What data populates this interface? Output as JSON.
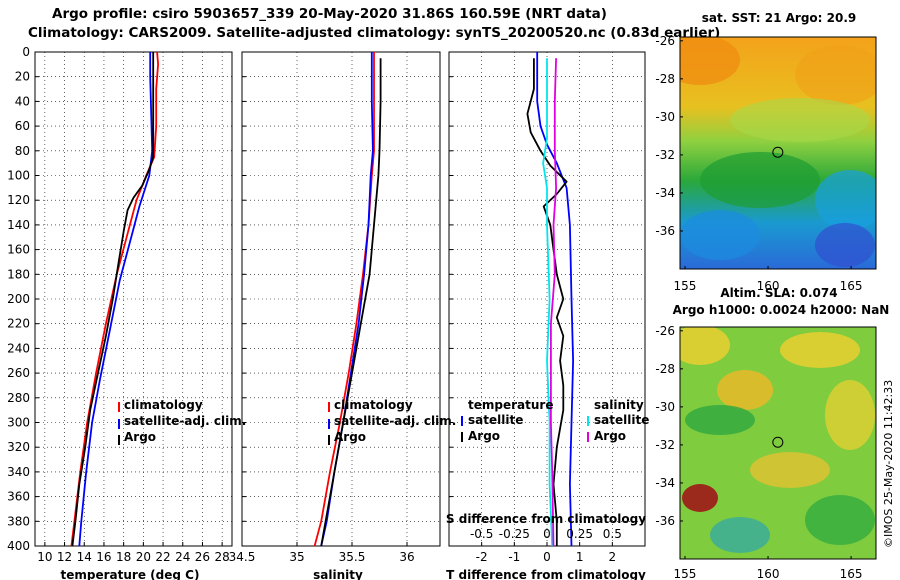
{
  "header": {
    "line1": "Argo profile: csiro 5903657_339 20-May-2020 31.86S 160.59E (NRT data)",
    "line2": "Climatology: CARS2009. Satellite-adjusted climatology: synTS_20200520.nc (0.83d earlier)"
  },
  "colors": {
    "climatology": "#ff0000",
    "satellite": "#0000ff",
    "argo": "#000000",
    "satellite_salinity": "#00e5ee",
    "argo_salinity": "#e000e0"
  },
  "chart_data": [
    {
      "type": "line",
      "name": "temperature",
      "xlabel": "temperature (deg C)",
      "xlim": [
        9,
        29
      ],
      "xticks": [
        10,
        12,
        14,
        16,
        18,
        20,
        22,
        24,
        26,
        28
      ],
      "ylim": [
        400,
        0
      ],
      "yticks": [
        0,
        20,
        40,
        60,
        80,
        100,
        120,
        140,
        160,
        180,
        200,
        220,
        240,
        260,
        280,
        300,
        320,
        340,
        360,
        380,
        400
      ],
      "grid": true,
      "legend": [
        "climatology",
        "satellite-adj. clim.",
        "Argo"
      ],
      "series": [
        {
          "name": "climatology",
          "color": "#ff0000",
          "points": [
            [
              21.4,
              0
            ],
            [
              21.5,
              10
            ],
            [
              21.3,
              30
            ],
            [
              21.3,
              60
            ],
            [
              21.1,
              85
            ],
            [
              20.3,
              100
            ],
            [
              19.3,
              120
            ],
            [
              18.3,
              150
            ],
            [
              17.3,
              180
            ],
            [
              16.2,
              220
            ],
            [
              15.2,
              260
            ],
            [
              14.3,
              300
            ],
            [
              13.6,
              340
            ],
            [
              13.0,
              380
            ],
            [
              12.7,
              400
            ]
          ]
        },
        {
          "name": "satellite-adj. clim.",
          "color": "#0000ff",
          "points": [
            [
              20.7,
              0
            ],
            [
              20.7,
              20
            ],
            [
              20.8,
              50
            ],
            [
              20.9,
              80
            ],
            [
              20.6,
              100
            ],
            [
              19.6,
              125
            ],
            [
              18.6,
              155
            ],
            [
              17.6,
              185
            ],
            [
              16.6,
              225
            ],
            [
              15.6,
              265
            ],
            [
              14.8,
              300
            ],
            [
              14.2,
              340
            ],
            [
              13.7,
              380
            ],
            [
              13.5,
              400
            ]
          ]
        },
        {
          "name": "Argo",
          "color": "#000000",
          "points": [
            [
              21.0,
              0
            ],
            [
              21.0,
              30
            ],
            [
              21.0,
              60
            ],
            [
              21.0,
              85
            ],
            [
              20.6,
              95
            ],
            [
              19.9,
              108
            ],
            [
              19.0,
              118
            ],
            [
              18.4,
              128
            ],
            [
              18.0,
              145
            ],
            [
              17.5,
              170
            ],
            [
              16.9,
              200
            ],
            [
              16.2,
              230
            ],
            [
              15.4,
              260
            ],
            [
              14.6,
              290
            ],
            [
              14.1,
              320
            ],
            [
              13.5,
              350
            ],
            [
              13.1,
              380
            ],
            [
              12.8,
              400
            ]
          ]
        }
      ]
    },
    {
      "type": "line",
      "name": "salinity",
      "xlabel": "salinity",
      "xlim": [
        34.5,
        36.3
      ],
      "xticks": [
        34.5,
        35,
        35.5,
        36
      ],
      "xticklabels": [
        "34.5",
        "35",
        "35.5",
        "36"
      ],
      "ylim": [
        400,
        0
      ],
      "legend": [
        "climatology",
        "satellite-adj. clim.",
        "Argo"
      ],
      "series": [
        {
          "name": "climatology",
          "color": "#ff0000",
          "points": [
            [
              35.7,
              0
            ],
            [
              35.7,
              40
            ],
            [
              35.7,
              80
            ],
            [
              35.68,
              100
            ],
            [
              35.65,
              140
            ],
            [
              35.6,
              180
            ],
            [
              35.54,
              220
            ],
            [
              35.47,
              260
            ],
            [
              35.39,
              300
            ],
            [
              35.3,
              340
            ],
            [
              35.22,
              380
            ],
            [
              35.16,
              400
            ]
          ]
        },
        {
          "name": "satellite-adj. clim.",
          "color": "#0000ff",
          "points": [
            [
              35.68,
              0
            ],
            [
              35.68,
              40
            ],
            [
              35.69,
              80
            ],
            [
              35.67,
              100
            ],
            [
              35.65,
              140
            ],
            [
              35.61,
              180
            ],
            [
              35.56,
              220
            ],
            [
              35.49,
              260
            ],
            [
              35.42,
              300
            ],
            [
              35.34,
              340
            ],
            [
              35.27,
              380
            ],
            [
              35.22,
              400
            ]
          ]
        },
        {
          "name": "Argo",
          "color": "#000000",
          "points": [
            [
              35.76,
              5
            ],
            [
              35.76,
              40
            ],
            [
              35.75,
              80
            ],
            [
              35.74,
              100
            ],
            [
              35.71,
              130
            ],
            [
              35.68,
              160
            ],
            [
              35.66,
              180
            ],
            [
              35.62,
              200
            ],
            [
              35.58,
              220
            ],
            [
              35.52,
              250
            ],
            [
              35.46,
              280
            ],
            [
              35.4,
              310
            ],
            [
              35.34,
              340
            ],
            [
              35.28,
              370
            ],
            [
              35.22,
              400
            ]
          ]
        }
      ]
    },
    {
      "type": "line",
      "name": "differences",
      "xlabel": "T difference from climatology",
      "xlim": [
        -3,
        3
      ],
      "xticks": [
        -2,
        -1,
        0,
        1,
        2
      ],
      "top_xlabel": "S difference from climatology",
      "top_xlim": [
        -0.75,
        0.75
      ],
      "top_xticks": [
        -0.5,
        -0.25,
        0,
        0.25,
        0.5
      ],
      "top_xticklabels": [
        "-0.5",
        "-0.25",
        "0",
        "0.25",
        "0.5"
      ],
      "ylim": [
        400,
        0
      ],
      "legend_groups": [
        {
          "title": "temperature",
          "entries": [
            "satellite",
            "Argo"
          ]
        },
        {
          "title": "salinity",
          "entries": [
            "satellite",
            "Argo"
          ]
        }
      ],
      "series": [
        {
          "name": "temperature satellite",
          "color": "#0000ff",
          "axis": "T",
          "points": [
            [
              -0.3,
              0
            ],
            [
              -0.3,
              20
            ],
            [
              -0.3,
              40
            ],
            [
              -0.2,
              60
            ],
            [
              0,
              75
            ],
            [
              0.3,
              90
            ],
            [
              0.6,
              110
            ],
            [
              0.7,
              140
            ],
            [
              0.75,
              200
            ],
            [
              0.8,
              250
            ],
            [
              0.75,
              300
            ],
            [
              0.7,
              350
            ],
            [
              0.75,
              400
            ]
          ]
        },
        {
          "name": "temperature Argo",
          "color": "#000000",
          "axis": "T",
          "points": [
            [
              -0.4,
              5
            ],
            [
              -0.4,
              30
            ],
            [
              -0.6,
              50
            ],
            [
              -0.5,
              65
            ],
            [
              -0.2,
              80
            ],
            [
              0.1,
              92
            ],
            [
              0.6,
              105
            ],
            [
              0.3,
              115
            ],
            [
              -0.1,
              125
            ],
            [
              0.1,
              140
            ],
            [
              0.2,
              160
            ],
            [
              0.3,
              180
            ],
            [
              0.5,
              200
            ],
            [
              0.3,
              215
            ],
            [
              0.5,
              230
            ],
            [
              0.4,
              250
            ],
            [
              0.5,
              270
            ],
            [
              0.5,
              290
            ],
            [
              0.3,
              320
            ],
            [
              0.2,
              350
            ],
            [
              0.3,
              380
            ],
            [
              0.3,
              400
            ]
          ]
        },
        {
          "name": "salinity satellite",
          "color": "#00e5ee",
          "axis": "S",
          "points": [
            [
              0,
              5
            ],
            [
              0,
              40
            ],
            [
              0,
              70
            ],
            [
              -0.03,
              90
            ],
            [
              0,
              110
            ],
            [
              0,
              140
            ],
            [
              0.02,
              200
            ],
            [
              0,
              250
            ],
            [
              0.02,
              300
            ],
            [
              0.02,
              350
            ],
            [
              0.04,
              400
            ]
          ]
        },
        {
          "name": "salinity Argo",
          "color": "#e000e0",
          "axis": "S",
          "points": [
            [
              0.07,
              5
            ],
            [
              0.06,
              40
            ],
            [
              0.06,
              80
            ],
            [
              0.07,
              110
            ],
            [
              0.05,
              140
            ],
            [
              0.06,
              180
            ],
            [
              0.03,
              220
            ],
            [
              0.03,
              260
            ],
            [
              0.03,
              300
            ],
            [
              0.04,
              340
            ],
            [
              0.05,
              400
            ]
          ]
        }
      ]
    },
    {
      "type": "heatmap",
      "name": "sst-map",
      "title": "sat. SST: 21 Argo: 20.9",
      "xticks": [
        155,
        160,
        165
      ],
      "yticks": [
        -26,
        -28,
        -30,
        -32,
        -34,
        -36
      ],
      "xlim": [
        154.7,
        166.5
      ],
      "ylim": [
        -38,
        -25.8
      ],
      "marker": {
        "lon": 160.59,
        "lat": -31.86
      }
    },
    {
      "type": "heatmap",
      "name": "sla-map",
      "title1": "Altim. SLA: 0.074",
      "title2": "Argo h1000: 0.0024 h2000: NaN",
      "xticks": [
        155,
        160,
        165
      ],
      "yticks": [
        -26,
        -28,
        -30,
        -32,
        -34,
        -36
      ],
      "xlim": [
        154.7,
        166.5
      ],
      "ylim": [
        -38,
        -25.8
      ],
      "marker": {
        "lon": 160.59,
        "lat": -31.86
      }
    }
  ],
  "legend": {
    "climatology": "climatology",
    "satellite_adj": "satellite-adj. clim.",
    "argo": "Argo",
    "temperature": "temperature",
    "salinity": "salinity",
    "satellite": "satellite"
  },
  "credit": "©IMOS 25-May-2020 11:42:33"
}
